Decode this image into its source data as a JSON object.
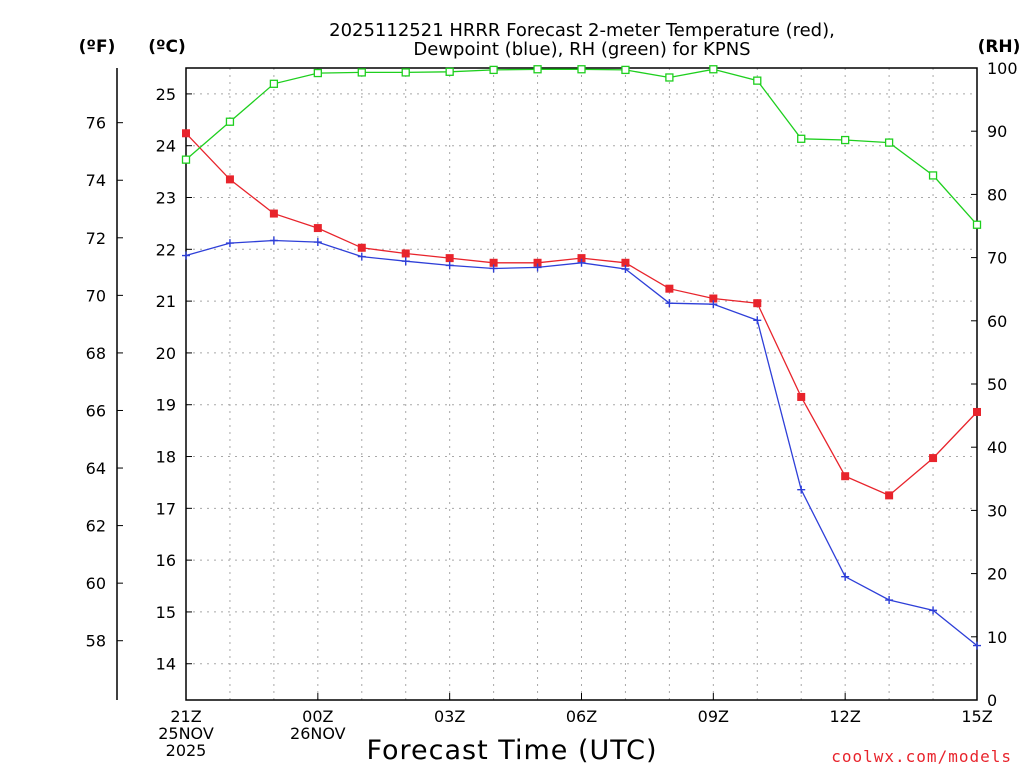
{
  "chart_data": {
    "type": "line",
    "title_line1": "2025112521 HRRR Forecast 2-meter Temperature (red),",
    "title_line2": "Dewpoint (blue), RH (green) for KPNS",
    "xlabel": "Forecast Time (UTC)",
    "credit": "coolwx.com/models",
    "units": {
      "f": "(ºF)",
      "c": "(ºC)",
      "rh": "(RH)"
    },
    "x_ticks": [
      {
        "hour": 0,
        "l1": "21Z",
        "l2": "25NOV",
        "l3": "2025"
      },
      {
        "hour": 3,
        "l1": "00Z",
        "l2": "26NOV",
        "l3": ""
      },
      {
        "hour": 6,
        "l1": "03Z",
        "l2": "",
        "l3": ""
      },
      {
        "hour": 9,
        "l1": "06Z",
        "l2": "",
        "l3": ""
      },
      {
        "hour": 12,
        "l1": "09Z",
        "l2": "",
        "l3": ""
      },
      {
        "hour": 15,
        "l1": "12Z",
        "l2": "",
        "l3": ""
      },
      {
        "hour": 18,
        "l1": "15Z",
        "l2": "",
        "l3": ""
      }
    ],
    "x_range": [
      0,
      18
    ],
    "celsius_range": [
      13.3,
      25.5
    ],
    "celsius_ticks": [
      "14",
      "15",
      "16",
      "17",
      "18",
      "19",
      "20",
      "21",
      "22",
      "23",
      "24",
      "25"
    ],
    "fahrenheit_ticks": [
      "58",
      "60",
      "62",
      "64",
      "66",
      "68",
      "70",
      "72",
      "74",
      "76"
    ],
    "rh_range": [
      0,
      100
    ],
    "rh_ticks": [
      "0",
      "10",
      "20",
      "30",
      "40",
      "50",
      "60",
      "70",
      "80",
      "90",
      "100"
    ],
    "series": [
      {
        "name": "Temperature",
        "color": "#e8242c",
        "axis": "c",
        "marker": "filled-square",
        "values": [
          24.24,
          23.35,
          22.69,
          22.41,
          22.03,
          21.92,
          21.83,
          21.74,
          21.74,
          21.83,
          21.74,
          21.24,
          21.05,
          20.96,
          19.15,
          17.62,
          17.25,
          17.97,
          18.86
        ]
      },
      {
        "name": "Dewpoint",
        "color": "#2e3fd8",
        "axis": "c",
        "marker": "plus",
        "values": [
          21.88,
          22.12,
          22.17,
          22.14,
          21.86,
          21.77,
          21.69,
          21.63,
          21.65,
          21.74,
          21.62,
          20.96,
          20.94,
          20.63,
          17.36,
          15.68,
          15.23,
          15.03,
          14.35
        ]
      },
      {
        "name": "RH",
        "color": "#1ecf1e",
        "axis": "rh",
        "marker": "open-square",
        "values": [
          85.5,
          91.5,
          97.5,
          99.2,
          99.3,
          99.3,
          99.4,
          99.7,
          99.8,
          99.8,
          99.7,
          98.5,
          99.8,
          98.0,
          88.8,
          88.6,
          88.2,
          83.0,
          75.2
        ]
      }
    ]
  }
}
